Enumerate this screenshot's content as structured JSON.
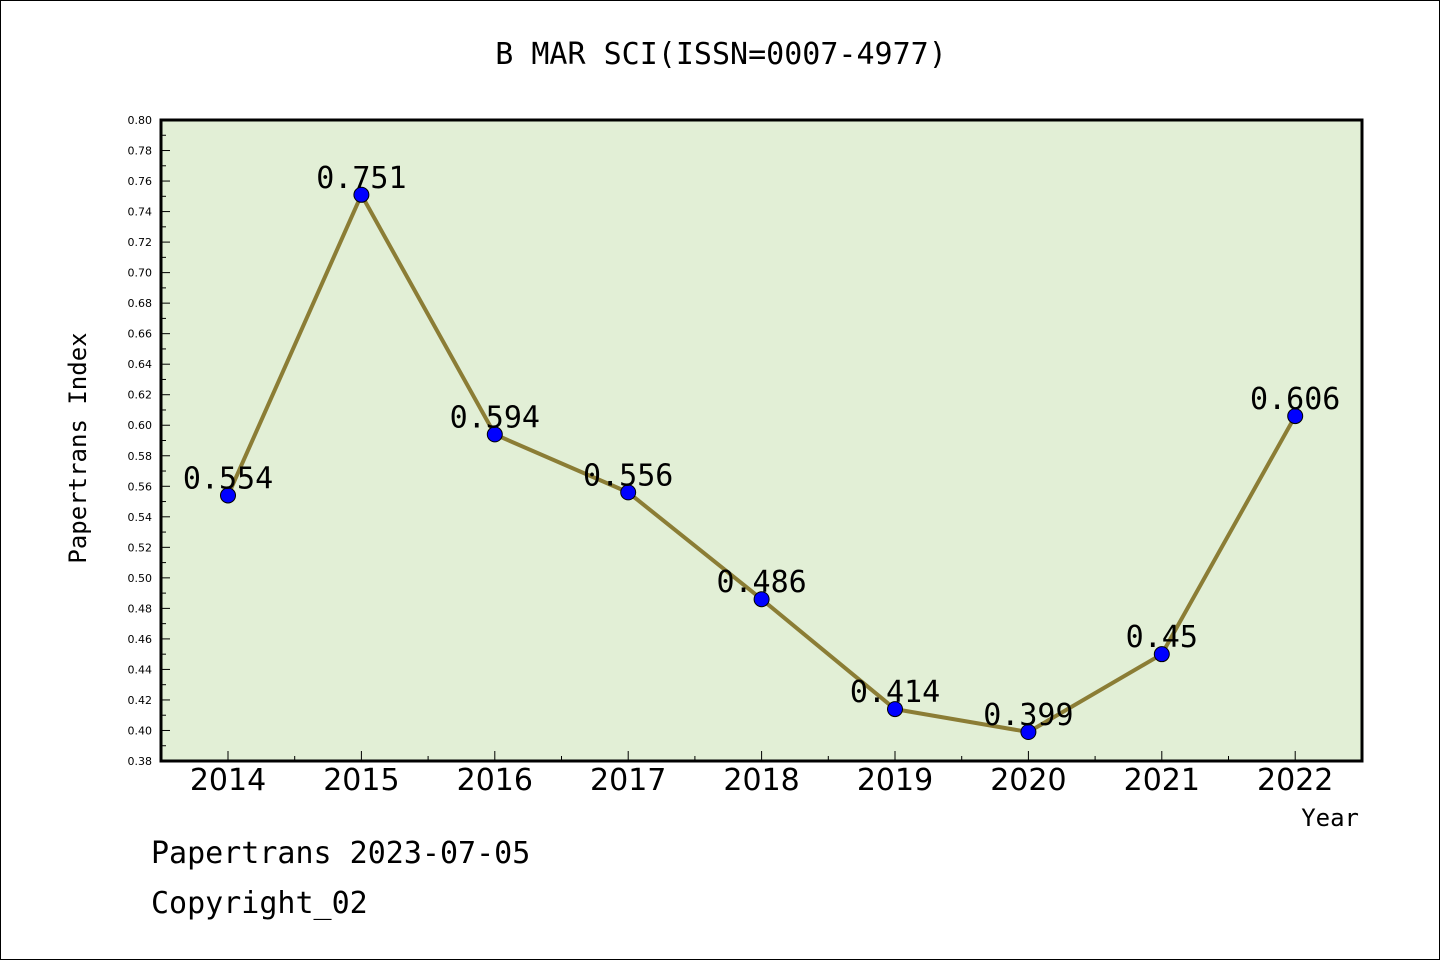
{
  "chart_data": {
    "type": "line",
    "title": "B MAR SCI(ISSN=0007-4977)",
    "xlabel": "Year",
    "ylabel": "Papertrans Index",
    "categories": [
      "2014",
      "2015",
      "2016",
      "2017",
      "2018",
      "2019",
      "2020",
      "2021",
      "2022"
    ],
    "values": [
      0.554,
      0.751,
      0.594,
      0.556,
      0.486,
      0.414,
      0.399,
      0.45,
      0.606
    ],
    "data_labels": [
      "0.554",
      "0.751",
      "0.594",
      "0.556",
      "0.486",
      "0.414",
      "0.399",
      "0.45",
      "0.606"
    ],
    "ylim": [
      0.38,
      0.8
    ],
    "yticks": [
      "0.38",
      "0.40",
      "0.42",
      "0.44",
      "0.46",
      "0.48",
      "0.50",
      "0.52",
      "0.54",
      "0.56",
      "0.58",
      "0.60",
      "0.62",
      "0.64",
      "0.66",
      "0.68",
      "0.70",
      "0.72",
      "0.74",
      "0.76",
      "0.78",
      "0.80"
    ],
    "grid": false,
    "colors": {
      "plot_background": "#e2efd6",
      "line": "#8b7d35",
      "marker": "#0000ff"
    }
  },
  "footer": {
    "date_text": "Papertrans 2023-07-05",
    "copyright_text": "Copyright_02"
  }
}
